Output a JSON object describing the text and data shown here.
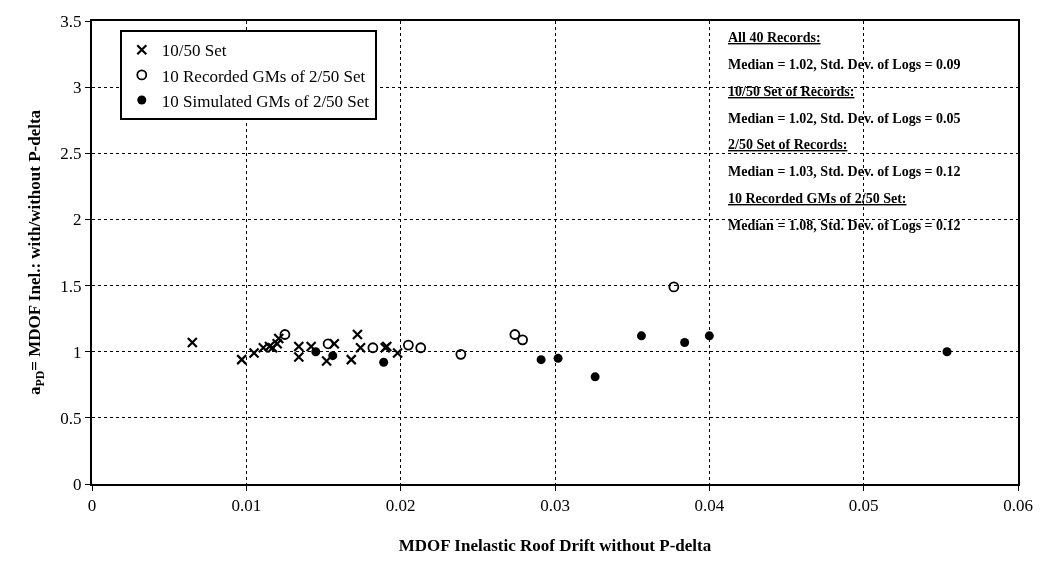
{
  "chart_data": {
    "type": "scatter",
    "xlabel": "MDOF Inelastic Roof Drift without P-delta",
    "ylabel": "a$_{PD}$= MDOF Inel.: with/without P-delta",
    "xlim": [
      0,
      0.06
    ],
    "xticks": [
      0,
      0.01,
      0.02,
      0.03,
      0.04,
      0.05,
      0.06
    ],
    "ylim": [
      0,
      3.5
    ],
    "yticks": [
      0,
      0.5,
      1,
      1.5,
      2,
      2.5,
      3,
      3.5
    ],
    "grid": true,
    "legend": "top left",
    "annotations": [
      "All 40 Records:",
      "Median = 1.02, Std. Dev. of Logs = 0.09",
      "10/50 Set of Records:",
      "Median = 1.02, Std. Dev. of Logs = 0.05",
      "2/50 Set of Records:",
      "Median = 1.03, Std. Dev. of Logs = 0.12",
      "10 Recorded GMs of 2/50 Set:",
      "Median = 1.08, Std. Dev. of Logs = 0.12"
    ],
    "series": [
      {
        "name": "10/50 Set",
        "color": "#000000",
        "marker": "cross",
        "x": [
          0.0065,
          0.0097,
          0.0105,
          0.0111,
          0.0115,
          0.0117,
          0.012,
          0.0121,
          0.0134,
          0.0134,
          0.0142,
          0.0143,
          0.0152,
          0.0157,
          0.0168,
          0.0172,
          0.0174,
          0.019,
          0.0191,
          0.0198
        ],
        "values": [
          1.07,
          0.94,
          0.99,
          1.03,
          1.04,
          1.03,
          1.06,
          1.1,
          1.04,
          0.96,
          1.04,
          null,
          0.93,
          1.06,
          0.94,
          1.13,
          1.03,
          1.03,
          1.04,
          0.99
        ]
      },
      {
        "name": "10 Recorded GMs of 2/50 Set",
        "color": "#000000",
        "marker": "circle",
        "x": [
          0.0125,
          0.0153,
          0.0182,
          0.0205,
          0.0213,
          0.0239,
          0.0274,
          0.0279,
          0.0377
        ],
        "values": [
          1.13,
          1.06,
          1.03,
          1.05,
          1.03,
          0.98,
          1.13,
          1.09,
          1.49
        ]
      },
      {
        "name": "10 Simulated GMs of 2/50 Set",
        "color": "#000000",
        "marker": "circle",
        "x": [
          0.0145,
          0.0156,
          0.0189,
          0.0291,
          0.0302,
          0.0326,
          0.0356,
          0.0384,
          0.04,
          0.0554
        ],
        "values": [
          1.0,
          0.97,
          0.92,
          0.94,
          0.95,
          0.81,
          1.12,
          1.07,
          1.12,
          1.0
        ]
      }
    ]
  }
}
